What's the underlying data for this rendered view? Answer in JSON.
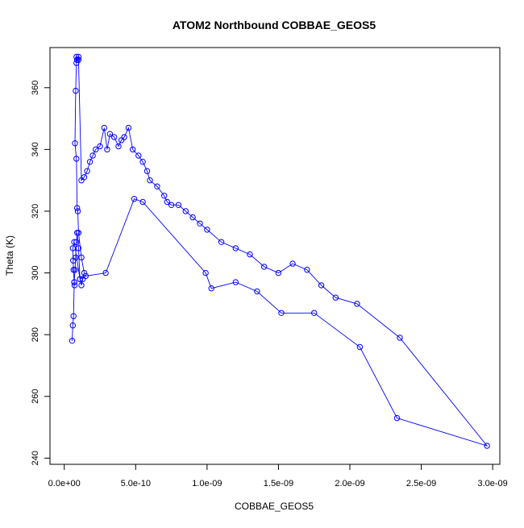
{
  "chart_data": {
    "type": "scatter",
    "title": "ATOM2 Northbound COBBAE_GEOS5",
    "xlabel": "COBBAE_GEOS5",
    "ylabel": "Theta (K)",
    "xlim": [
      -1e-10,
      3.05e-09
    ],
    "ylim": [
      238,
      373
    ],
    "x_ticks": [
      0,
      5e-10,
      1e-09,
      1.5e-09,
      2e-09,
      2.5e-09,
      3e-09
    ],
    "x_tick_labels": [
      "0.0e+00",
      "5.0e-10",
      "1.0e-09",
      "1.5e-09",
      "2.0e-09",
      "2.5e-09",
      "3.0e-09"
    ],
    "y_ticks": [
      240,
      260,
      280,
      300,
      320,
      340,
      360
    ],
    "y_tick_labels": [
      "240",
      "260",
      "280",
      "300",
      "320",
      "340",
      "360"
    ],
    "grid": false,
    "color": "#0000ff",
    "series": [
      {
        "x": [
          5.5e-11,
          6e-11,
          6.5e-11,
          7e-11,
          7.5e-11,
          8e-11,
          8.5e-11,
          9e-11,
          1e-10,
          1.1e-10,
          1.2e-10,
          1.3e-10,
          1.4e-10,
          1.2e-10,
          1e-10,
          9.5e-11,
          9e-11,
          8.5e-11,
          7.5e-11,
          8e-11,
          8.5e-11,
          9e-11,
          1e-10,
          8.5e-11,
          9e-11,
          1e-10,
          1.2e-10,
          1.4e-10,
          1.6e-10,
          1.8e-10,
          2e-10,
          2.2e-10,
          2.5e-10,
          2.8e-10,
          3e-10,
          3.2e-10,
          3.5e-10,
          3.8e-10,
          4e-10,
          4.2e-10,
          4.5e-10,
          4.8e-10,
          5.2e-10,
          5.5e-10,
          5.8e-10,
          6e-10,
          6.5e-10,
          7e-10,
          7.2e-10,
          7.5e-10,
          8e-10,
          8.5e-10,
          9e-10,
          9.5e-10,
          1e-09,
          1.1e-09,
          1.2e-09,
          1.3e-09,
          1.4e-09,
          1.5e-09,
          1.6e-09,
          1.7e-09,
          1.8e-09,
          1.9e-09,
          2.05e-09,
          2.35e-09,
          2.96e-09,
          2.33e-09,
          2.07e-09,
          1.75e-09,
          1.52e-09,
          1.35e-09,
          1.2e-09,
          1.03e-09,
          9.9e-10,
          5.5e-10,
          4.9e-10,
          2.9e-10,
          1.5e-10,
          1.1e-10,
          7e-11,
          6e-11,
          6.2e-11,
          6.5e-11,
          7e-11,
          7.2e-11
        ],
        "y": [
          278,
          283,
          286,
          297,
          301,
          305,
          310,
          313,
          308,
          298,
          296,
          298,
          300,
          305,
          313,
          320,
          321,
          337,
          342,
          359,
          368,
          369,
          370,
          370,
          369,
          369,
          330,
          331,
          333,
          336,
          338,
          340,
          341,
          347,
          340,
          345,
          344,
          341,
          343,
          344,
          347,
          340,
          338,
          336,
          333,
          330,
          328,
          325,
          323,
          322,
          322,
          320,
          318,
          316,
          314,
          310,
          308,
          306,
          302,
          300,
          303,
          301,
          296,
          292,
          290,
          279,
          244,
          253,
          276,
          287,
          287,
          294,
          297,
          295,
          300,
          323,
          324,
          300,
          299,
          298,
          310,
          308,
          304,
          301,
          297,
          296
        ]
      }
    ]
  }
}
